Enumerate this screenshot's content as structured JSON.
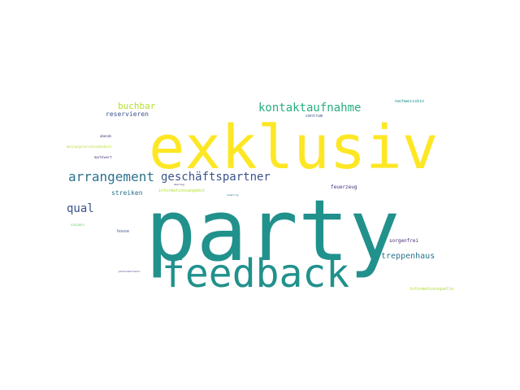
{
  "wordcloud": {
    "words": [
      {
        "text": "party",
        "color": "#21918c"
      },
      {
        "text": "exklusiv",
        "color": "#fde725"
      },
      {
        "text": "feedback",
        "color": "#21918c"
      },
      {
        "text": "arrangement",
        "color": "#2c728e"
      },
      {
        "text": "geschäftspartner",
        "color": "#3b528b"
      },
      {
        "text": "kontaktaufnahme",
        "color": "#28ae80"
      },
      {
        "text": "buchbar",
        "color": "#b5de2b"
      },
      {
        "text": "qual",
        "color": "#3b528b"
      },
      {
        "text": "treppenhaus",
        "color": "#2c728e"
      },
      {
        "text": "reservieren",
        "color": "#3b528b"
      },
      {
        "text": "streiken",
        "color": "#2c728e"
      },
      {
        "text": "feuerzeug",
        "color": "#472d7b"
      },
      {
        "text": "sorgenfrei",
        "color": "#472d7b"
      },
      {
        "text": "nachweisskin",
        "color": "#21918c"
      },
      {
        "text": "centrum",
        "color": "#3b528b"
      },
      {
        "text": "informationsangebot",
        "color": "#b5de2b"
      },
      {
        "text": "informationsquelle",
        "color": "#addc30"
      },
      {
        "text": "abends",
        "color": "#472d7b"
      },
      {
        "text": "meinungsverschiedenheit",
        "color": "#b5de2b"
      },
      {
        "text": "marktwert",
        "color": "#472d7b"
      },
      {
        "text": "house",
        "color": "#3b528b"
      },
      {
        "text": "surpass",
        "color": "#5ec962"
      },
      {
        "text": "jahrhundertwalt",
        "color": "#472d7b"
      },
      {
        "text": "stabtrog",
        "color": "#2c728e"
      },
      {
        "text": "abertag",
        "color": "#472d7b"
      }
    ]
  }
}
